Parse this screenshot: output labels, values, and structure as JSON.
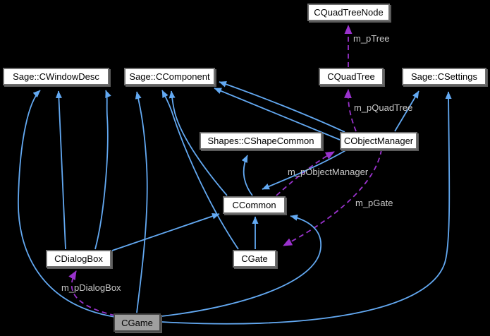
{
  "diagram": {
    "kind": "collaboration-graph",
    "background_color": "#000000",
    "colors": {
      "node_fill": "#ffffff",
      "node_border": "#6e6e6e",
      "node_text": "#000000",
      "focal_node_fill": "#9f9f9f",
      "inheritance_edge": "#63a9f2",
      "usage_edge": "#9a32cd",
      "edge_label_text": "#c8c8c8"
    },
    "nodes": [
      {
        "id": "CQuadTreeNode",
        "label": "CQuadTreeNode",
        "focal": false
      },
      {
        "id": "Sage::CWindowDesc",
        "label": "Sage::CWindowDesc",
        "focal": false
      },
      {
        "id": "Sage::CComponent",
        "label": "Sage::CComponent",
        "focal": false
      },
      {
        "id": "CQuadTree",
        "label": "CQuadTree",
        "focal": false
      },
      {
        "id": "Sage::CSettings",
        "label": "Sage::CSettings",
        "focal": false
      },
      {
        "id": "Shapes::CShapeCommon",
        "label": "Shapes::CShapeCommon",
        "focal": false
      },
      {
        "id": "CObjectManager",
        "label": "CObjectManager",
        "focal": false
      },
      {
        "id": "CCommon",
        "label": "CCommon",
        "focal": false
      },
      {
        "id": "CDialogBox",
        "label": "CDialogBox",
        "focal": false
      },
      {
        "id": "CGate",
        "label": "CGate",
        "focal": false
      },
      {
        "id": "CGame",
        "label": "CGame",
        "focal": true
      }
    ],
    "edges": [
      {
        "from": "CQuadTree",
        "to": "CQuadTreeNode",
        "type": "usage",
        "label": "m_pTree"
      },
      {
        "from": "CObjectManager",
        "to": "CQuadTree",
        "type": "usage",
        "label": "m_pQuadTree"
      },
      {
        "from": "CCommon",
        "to": "CObjectManager",
        "type": "usage",
        "label": "m_pObjectManager"
      },
      {
        "from": "CObjectManager",
        "to": "CGate",
        "type": "usage",
        "label": "m_pGate"
      },
      {
        "from": "CGame",
        "to": "CDialogBox",
        "type": "usage",
        "label": "m_pDialogBox"
      },
      {
        "from": "CGame",
        "to": "Sage::CWindowDesc",
        "type": "inheritance",
        "label": ""
      },
      {
        "from": "CDialogBox",
        "to": "Sage::CWindowDesc",
        "type": "inheritance",
        "label": ""
      },
      {
        "from": "CDialogBox",
        "to": "Sage::CWindowDesc",
        "type": "inheritance",
        "label": ""
      },
      {
        "from": "CGame",
        "to": "Sage::CComponent",
        "type": "inheritance",
        "label": ""
      },
      {
        "from": "CCommon",
        "to": "Sage::CComponent",
        "type": "inheritance",
        "label": ""
      },
      {
        "from": "CGate",
        "to": "Sage::CComponent",
        "type": "inheritance",
        "label": ""
      },
      {
        "from": "CObjectManager",
        "to": "Sage::CComponent",
        "type": "inheritance",
        "label": ""
      },
      {
        "from": "CObjectManager",
        "to": "Sage::CComponent",
        "type": "inheritance",
        "label": ""
      },
      {
        "from": "CCommon",
        "to": "Shapes::CShapeCommon",
        "type": "inheritance",
        "label": ""
      },
      {
        "from": "CObjectManager",
        "to": "CCommon",
        "type": "inheritance",
        "label": ""
      },
      {
        "from": "CGate",
        "to": "CCommon",
        "type": "inheritance",
        "label": ""
      },
      {
        "from": "CGame",
        "to": "CCommon",
        "type": "inheritance",
        "label": ""
      },
      {
        "from": "CDialogBox",
        "to": "CCommon",
        "type": "inheritance",
        "label": ""
      },
      {
        "from": "CGame",
        "to": "Sage::CSettings",
        "type": "inheritance",
        "label": ""
      },
      {
        "from": "CObjectManager",
        "to": "Sage::CSettings",
        "type": "inheritance",
        "label": ""
      }
    ]
  }
}
